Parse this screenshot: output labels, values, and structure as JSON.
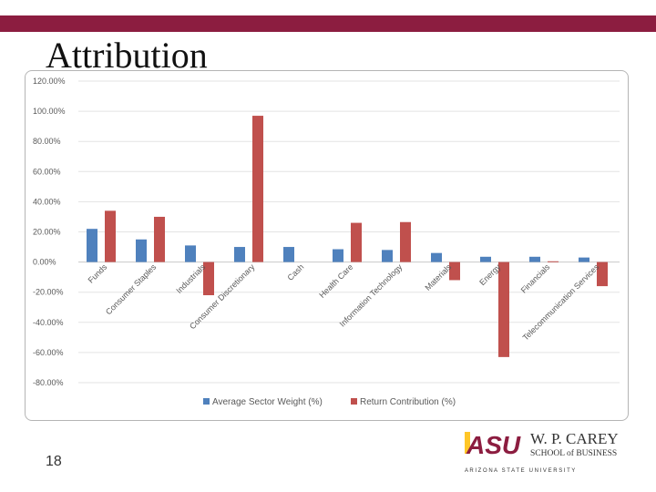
{
  "slide": {
    "title": "Attribution",
    "page_number": "18",
    "accent_color": "#8c1d40"
  },
  "logo": {
    "mark": "ASU",
    "school_line1": "W. P. CAREY",
    "school_line2": "SCHOOL of BUSINESS",
    "university": "A R I Z O N A   S T A T E   U N I V E R S I T Y",
    "mark_color": "#8c1d40",
    "accent_color": "#ffc627"
  },
  "chart_data": {
    "type": "bar",
    "title": "",
    "xlabel": "",
    "ylabel": "",
    "ylim": [
      -80,
      120
    ],
    "yticks": [
      120,
      100,
      80,
      60,
      40,
      20,
      0,
      -20,
      -40,
      -60,
      -80
    ],
    "ytick_labels": [
      "120.00%",
      "100.00%",
      "80.00%",
      "60.00%",
      "40.00%",
      "20.00%",
      "0.00%",
      "-20.00%",
      "-40.00%",
      "-60.00%",
      "-80.00%"
    ],
    "grid": true,
    "legend_position": "bottom",
    "categories": [
      "Funds",
      "Consumer Staples",
      "Industrials",
      "Consumer Discretionary",
      "Cash",
      "Health Care",
      "Information Technology",
      "Materials",
      "Energy",
      "Financials",
      "Telecommunication Services"
    ],
    "series": [
      {
        "name": "Average Sector Weight (%)",
        "color": "#4f81bd",
        "values": [
          22,
          15,
          11,
          10,
          10,
          8.5,
          8,
          6,
          3.5,
          3.5,
          3
        ]
      },
      {
        "name": "Return Contribution (%)",
        "color": "#c0504d",
        "values": [
          34,
          30,
          -22,
          97,
          0,
          26,
          26.5,
          -12,
          -63,
          0.5,
          -16
        ]
      }
    ]
  }
}
